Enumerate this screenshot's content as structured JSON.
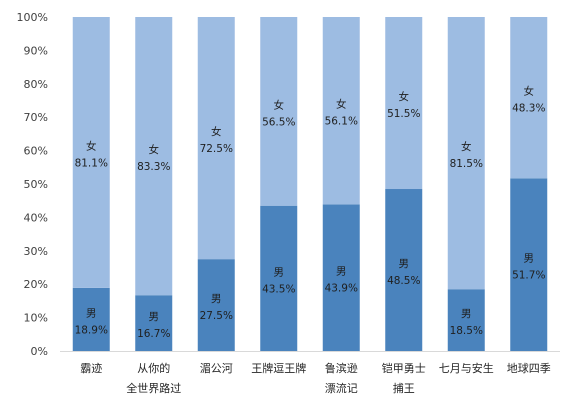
{
  "chart_data": {
    "type": "bar",
    "stacked": true,
    "percent": true,
    "categories": [
      [
        "霸迹"
      ],
      [
        "从你的",
        "全世界路过"
      ],
      [
        "湄公河"
      ],
      [
        "王牌逗王牌"
      ],
      [
        "鲁滨逊",
        "漂流记"
      ],
      [
        "铠甲勇士",
        "捕王"
      ],
      [
        "七月与安生"
      ],
      [
        "地球四季"
      ]
    ],
    "series": [
      {
        "name": "男",
        "color": "#4a83bd",
        "labels": [
          "18.9%",
          "16.7%",
          "27.5%",
          "43.5%",
          "43.9%",
          "48.5%",
          "18.5%",
          "51.7%"
        ],
        "values": [
          18.9,
          16.7,
          27.5,
          43.5,
          43.9,
          48.5,
          18.5,
          51.7
        ]
      },
      {
        "name": "女",
        "color": "#9dbce2",
        "labels": [
          "81.1%",
          "83.3%",
          "72.5%",
          "56.5%",
          "56.1%",
          "51.5%",
          "81.5%",
          "48.3%"
        ],
        "values": [
          81.1,
          83.3,
          72.5,
          56.5,
          56.1,
          51.5,
          81.5,
          48.3
        ]
      }
    ],
    "yticks": [
      "0%",
      "10%",
      "20%",
      "30%",
      "40%",
      "50%",
      "60%",
      "70%",
      "80%",
      "90%",
      "100%"
    ],
    "ylim": [
      0,
      100
    ],
    "grid": false,
    "legend": "none"
  }
}
